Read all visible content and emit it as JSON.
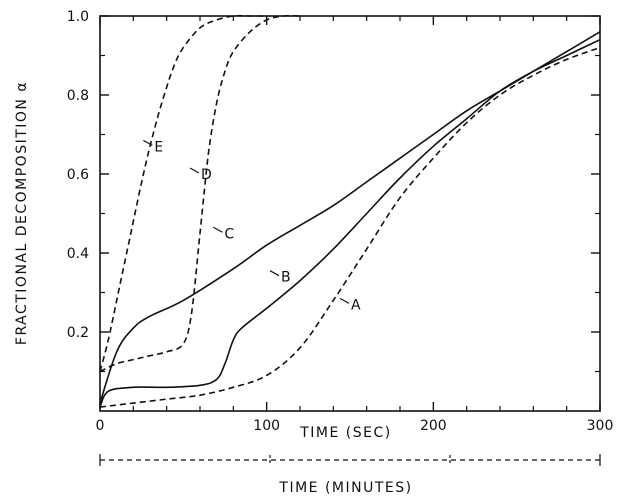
{
  "chart_data": {
    "type": "line",
    "xlabel": "TIME (SEC)",
    "ylabel": "FRACTIONAL DECOMPOSITION α",
    "secondary_xlabel": "TIME (MINUTES)",
    "xlim": [
      0,
      300
    ],
    "ylim": [
      0,
      1.0
    ],
    "x_ticks": [
      0,
      100,
      200,
      300
    ],
    "x_tick_labels": [
      "0",
      "100",
      "200",
      "300"
    ],
    "y_ticks": [
      0.2,
      0.4,
      0.6,
      0.8,
      1.0
    ],
    "y_tick_labels": [
      "0.2",
      "0.4",
      "0.6",
      "0.8",
      "1.0"
    ],
    "grid": false,
    "series": [
      {
        "name": "A",
        "style": "dashed",
        "x": [
          0,
          20,
          40,
          60,
          80,
          100,
          120,
          140,
          160,
          180,
          200,
          220,
          240,
          260,
          280,
          300
        ],
        "y": [
          0.01,
          0.02,
          0.03,
          0.04,
          0.06,
          0.09,
          0.16,
          0.28,
          0.41,
          0.54,
          0.64,
          0.73,
          0.8,
          0.85,
          0.89,
          0.92
        ],
        "label": "A",
        "label_at": [
          150,
          0.27
        ]
      },
      {
        "name": "B",
        "style": "solid",
        "x": [
          0,
          5,
          20,
          40,
          60,
          70,
          75,
          80,
          85,
          100,
          120,
          140,
          160,
          180,
          200,
          220,
          240,
          260,
          280,
          300
        ],
        "y": [
          0.01,
          0.05,
          0.06,
          0.06,
          0.065,
          0.08,
          0.12,
          0.18,
          0.21,
          0.26,
          0.33,
          0.41,
          0.5,
          0.59,
          0.67,
          0.74,
          0.81,
          0.86,
          0.9,
          0.94
        ],
        "label": "B",
        "label_at": [
          108,
          0.34
        ]
      },
      {
        "name": "C",
        "style": "solid",
        "x": [
          0,
          10,
          20,
          30,
          50,
          80,
          100,
          120,
          140,
          160,
          180,
          200,
          220,
          240,
          260,
          280,
          300
        ],
        "y": [
          0.02,
          0.15,
          0.21,
          0.24,
          0.28,
          0.36,
          0.42,
          0.47,
          0.52,
          0.58,
          0.64,
          0.7,
          0.76,
          0.81,
          0.86,
          0.91,
          0.96
        ],
        "label": "C",
        "label_at": [
          74,
          0.45
        ]
      },
      {
        "name": "D",
        "style": "dashed",
        "x": [
          0,
          10,
          20,
          30,
          40,
          50,
          55,
          60,
          65,
          70,
          75,
          80,
          90,
          100,
          110,
          120
        ],
        "y": [
          0.1,
          0.12,
          0.13,
          0.14,
          0.15,
          0.17,
          0.25,
          0.45,
          0.65,
          0.78,
          0.86,
          0.91,
          0.96,
          0.99,
          1.0,
          1.0
        ],
        "label": "D",
        "label_at": [
          60,
          0.6
        ]
      },
      {
        "name": "E",
        "style": "dashed",
        "x": [
          0,
          5,
          10,
          15,
          20,
          25,
          30,
          35,
          40,
          45,
          50,
          60,
          70,
          80,
          90,
          100
        ],
        "y": [
          0.1,
          0.18,
          0.28,
          0.38,
          0.48,
          0.58,
          0.67,
          0.75,
          0.82,
          0.88,
          0.92,
          0.97,
          0.99,
          1.0,
          1.0,
          1.0
        ],
        "label": "E",
        "label_at": [
          32,
          0.67
        ]
      }
    ]
  }
}
